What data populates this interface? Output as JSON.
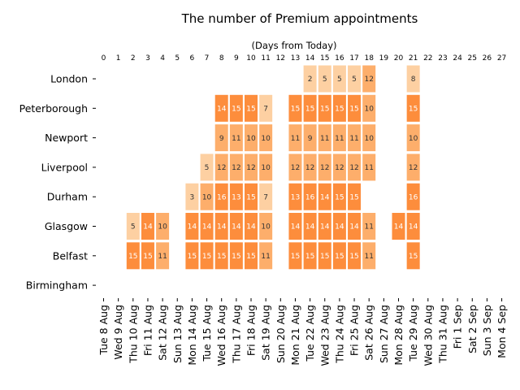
{
  "chart_data": {
    "type": "heatmap",
    "title": "The number of Premium appointments",
    "top_axis_label": "(Days from Today)",
    "top_ticks": [
      "0",
      "1",
      "2",
      "3",
      "4",
      "5",
      "6",
      "7",
      "8",
      "9",
      "10",
      "11",
      "12",
      "13",
      "14",
      "15",
      "16",
      "17",
      "18",
      "19",
      "20",
      "21",
      "22",
      "23",
      "24",
      "25",
      "26",
      "27"
    ],
    "dates": [
      "Tue 8 Aug",
      "Wed 9 Aug",
      "Thu 10 Aug",
      "Fri 11 Aug",
      "Sat 12 Aug",
      "Sun 13 Aug",
      "Mon 14 Aug",
      "Tue 15 Aug",
      "Wed 16 Aug",
      "Thu 17 Aug",
      "Fri 18 Aug",
      "Sat 19 Aug",
      "Sun 20 Aug",
      "Mon 21 Aug",
      "Tue 22 Aug",
      "Wed 23 Aug",
      "Thu 24 Aug",
      "Fri 25 Aug",
      "Sat 26 Aug",
      "Sun 27 Aug",
      "Mon 28 Aug",
      "Tue 29 Aug",
      "Wed 30 Aug",
      "Thu 31 Aug",
      "Fri 1 Sep",
      "Sat 2 Sep",
      "Sun 3 Sep",
      "Mon 4 Sep"
    ],
    "rows": [
      {
        "name": "London",
        "values": [
          null,
          null,
          null,
          null,
          null,
          null,
          null,
          null,
          null,
          null,
          null,
          null,
          null,
          null,
          2,
          5,
          5,
          5,
          12,
          null,
          null,
          8,
          null,
          null,
          null,
          null,
          null,
          null
        ]
      },
      {
        "name": "Peterborough",
        "values": [
          null,
          null,
          null,
          null,
          null,
          null,
          null,
          null,
          14,
          15,
          15,
          7,
          null,
          15,
          15,
          15,
          15,
          15,
          10,
          null,
          null,
          15,
          null,
          null,
          null,
          null,
          null,
          null
        ]
      },
      {
        "name": "Newport",
        "values": [
          null,
          null,
          null,
          null,
          null,
          null,
          null,
          null,
          9,
          11,
          10,
          10,
          null,
          11,
          9,
          11,
          11,
          11,
          10,
          null,
          null,
          10,
          null,
          null,
          null,
          null,
          null,
          null
        ]
      },
      {
        "name": "Liverpool",
        "values": [
          null,
          null,
          null,
          null,
          null,
          null,
          null,
          5,
          12,
          12,
          12,
          10,
          null,
          12,
          12,
          12,
          12,
          12,
          11,
          null,
          null,
          12,
          null,
          null,
          null,
          null,
          null,
          null
        ]
      },
      {
        "name": "Durham",
        "values": [
          null,
          null,
          null,
          null,
          null,
          null,
          3,
          10,
          16,
          13,
          15,
          7,
          null,
          13,
          16,
          14,
          15,
          15,
          null,
          null,
          null,
          16,
          null,
          null,
          null,
          null,
          null,
          null
        ]
      },
      {
        "name": "Glasgow",
        "values": [
          null,
          null,
          5,
          14,
          10,
          null,
          14,
          14,
          14,
          14,
          14,
          10,
          null,
          14,
          14,
          14,
          14,
          14,
          11,
          null,
          14,
          14,
          null,
          null,
          null,
          null,
          null,
          null
        ]
      },
      {
        "name": "Belfast",
        "values": [
          null,
          null,
          15,
          15,
          11,
          null,
          15,
          15,
          15,
          15,
          15,
          11,
          null,
          15,
          15,
          15,
          15,
          15,
          11,
          null,
          null,
          15,
          null,
          null,
          null,
          null,
          null,
          null
        ]
      },
      {
        "name": "Birmingham",
        "values": [
          null,
          null,
          null,
          null,
          null,
          null,
          null,
          null,
          null,
          null,
          null,
          null,
          null,
          null,
          null,
          null,
          null,
          null,
          null,
          null,
          null,
          null,
          null,
          null,
          null,
          null,
          null,
          null
        ]
      }
    ],
    "colors": {
      "high": "#fd8d3c",
      "mid": "#fdae6b",
      "low": "#fdd0a2",
      "text_light": "#ffffff",
      "text_dark": "#333333"
    }
  }
}
